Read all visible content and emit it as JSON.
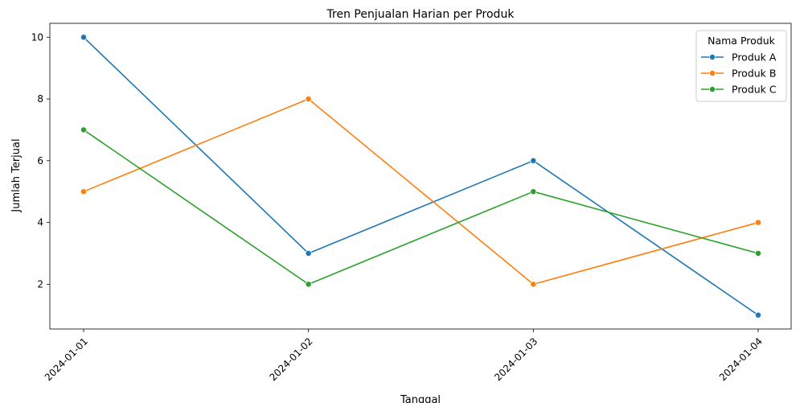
{
  "chart_data": {
    "type": "line",
    "title": "Tren Penjualan Harian per Produk",
    "xlabel": "Tanggal",
    "ylabel": "Jumlah Terjual",
    "categories": [
      "2024-01-01",
      "2024-01-02",
      "2024-01-03",
      "2024-01-04"
    ],
    "y_ticks": [
      2,
      4,
      6,
      8,
      10
    ],
    "ylim": [
      0.55,
      10.45
    ],
    "grid": false,
    "legend": {
      "title": "Nama Produk",
      "placement": "top-right"
    },
    "series": [
      {
        "name": "Produk A",
        "color": "#1f77b4",
        "values": [
          10,
          3,
          6,
          1
        ]
      },
      {
        "name": "Produk B",
        "color": "#ff7f0e",
        "values": [
          5,
          8,
          2,
          4
        ]
      },
      {
        "name": "Produk C",
        "color": "#2ca02c",
        "values": [
          7,
          2,
          5,
          3
        ]
      }
    ]
  }
}
